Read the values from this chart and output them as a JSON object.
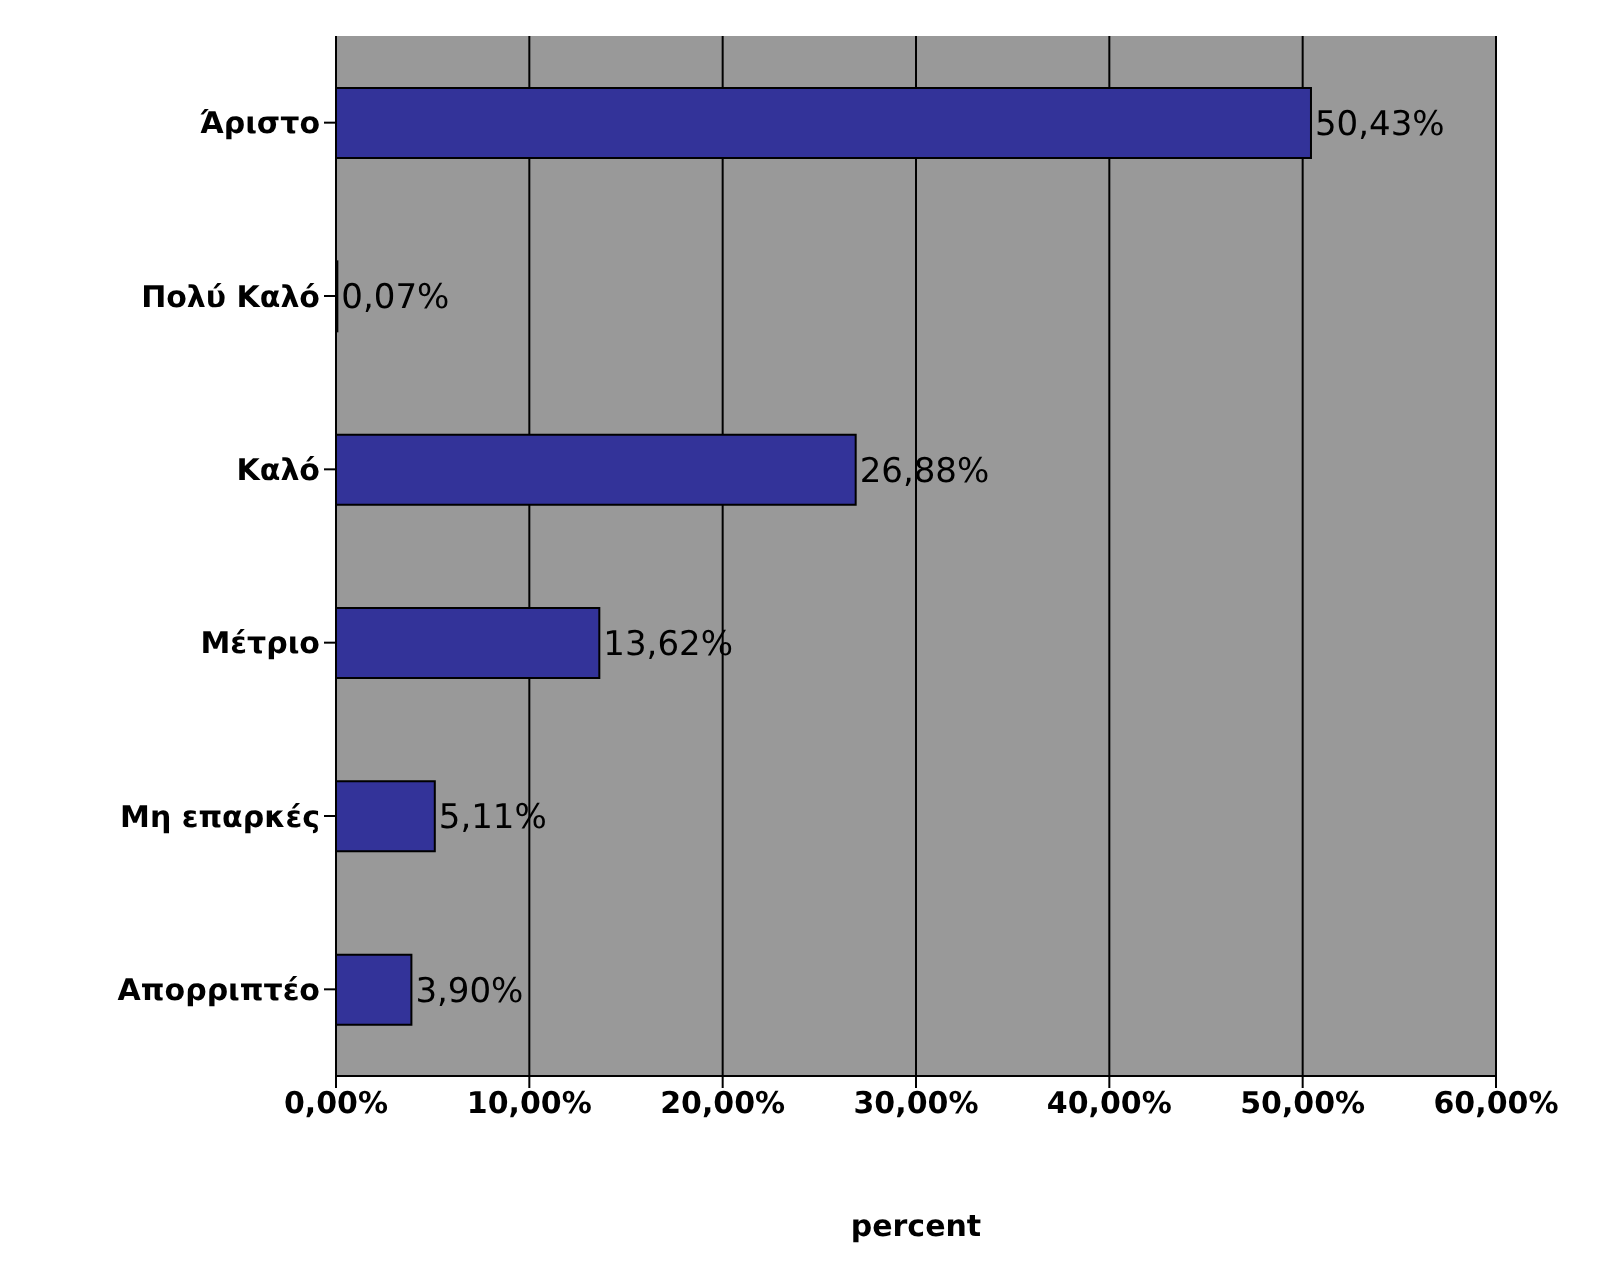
{
  "chart_data": {
    "type": "bar",
    "orientation": "horizontal",
    "xlabel": "percent",
    "categories": [
      "Άριστο",
      "Πολύ Καλό",
      "Καλό",
      "Μέτριο",
      "Μη επαρκές",
      "Απορριπτέο"
    ],
    "values": [
      50.43,
      0.07,
      26.88,
      13.62,
      5.11,
      3.9
    ],
    "value_labels": [
      "50,43%",
      "0,07%",
      "26,88%",
      "13,62%",
      "5,11%",
      "3,90%"
    ],
    "color": "#333399",
    "xlim": [
      0,
      60
    ],
    "xticks": [
      {
        "value": 0,
        "label": "0,00%"
      },
      {
        "value": 10,
        "label": "10,00%"
      },
      {
        "value": 20,
        "label": "20,00%"
      },
      {
        "value": 30,
        "label": "30,00%"
      },
      {
        "value": 40,
        "label": "40,00%"
      },
      {
        "value": 50,
        "label": "50,00%"
      },
      {
        "value": 60,
        "label": "60,00%"
      }
    ],
    "grid": "x"
  }
}
